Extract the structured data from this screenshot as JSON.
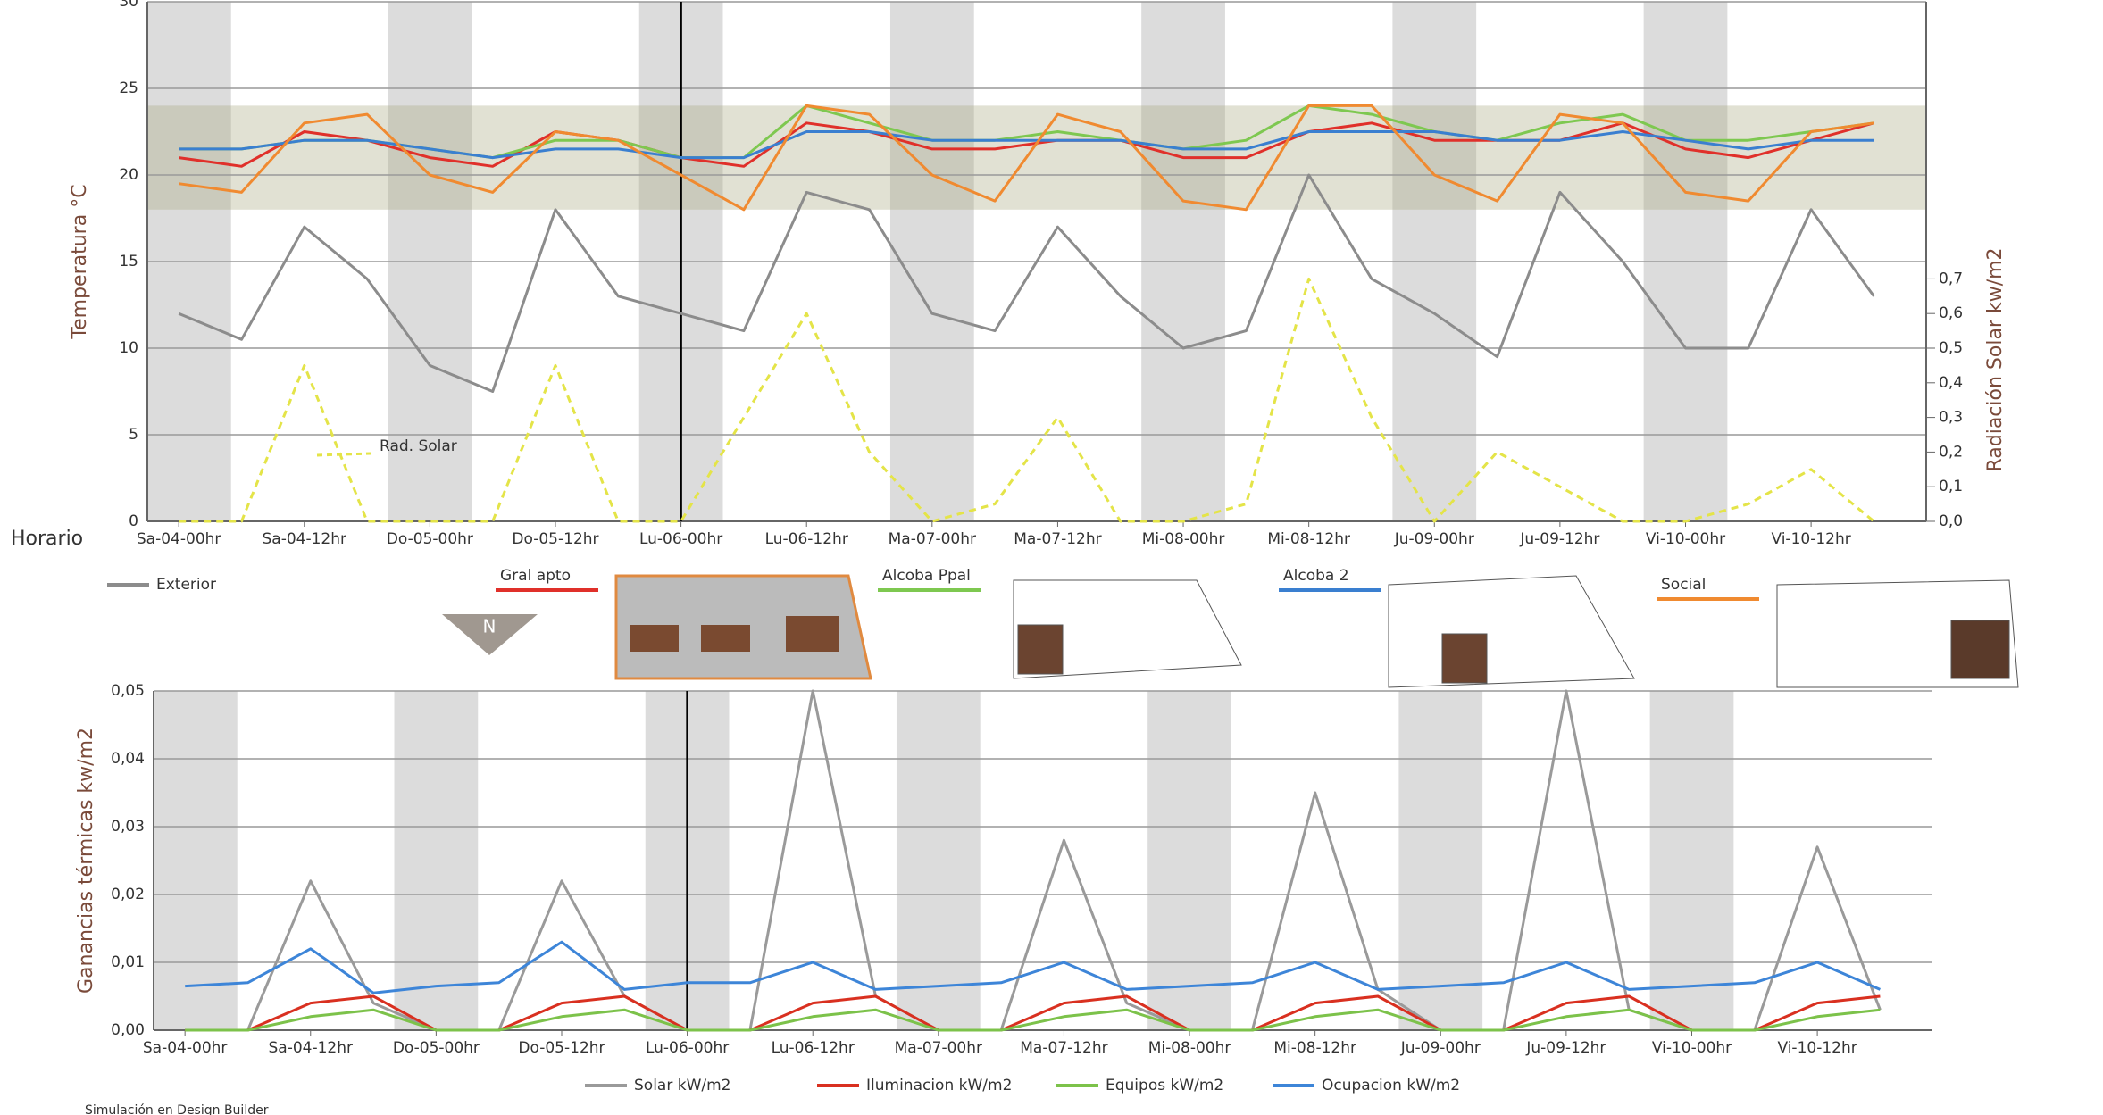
{
  "chart_data": [
    {
      "type": "line",
      "y_label": "Temperatura °C",
      "y2_label": "Radiación Solar kw/m2",
      "x_label": "Horario",
      "annotations": [
        {
          "text": "Rad. Solar"
        }
      ],
      "x": [
        0,
        6,
        12,
        18,
        24,
        30,
        36,
        42,
        48,
        54,
        60,
        66,
        72,
        78,
        84,
        90,
        96,
        102,
        108,
        114,
        120,
        126,
        132,
        138,
        144,
        150,
        156,
        162
      ],
      "xlim": [
        -3,
        167
      ],
      "xticks": [
        {
          "value": 0,
          "label": "Sa-04-00hr"
        },
        {
          "value": 12,
          "label": "Sa-04-12hr"
        },
        {
          "value": 24,
          "label": "Do-05-00hr"
        },
        {
          "value": 36,
          "label": "Do-05-12hr"
        },
        {
          "value": 48,
          "label": "Lu-06-00hr"
        },
        {
          "value": 60,
          "label": "Lu-06-12hr"
        },
        {
          "value": 72,
          "label": "Ma-07-00hr"
        },
        {
          "value": 84,
          "label": "Ma-07-12hr"
        },
        {
          "value": 96,
          "label": "Mi-08-00hr"
        },
        {
          "value": 108,
          "label": "Mi-08-12hr"
        },
        {
          "value": 120,
          "label": "Ju-09-00hr"
        },
        {
          "value": 132,
          "label": "Ju-09-12hr"
        },
        {
          "value": 144,
          "label": "Vi-10-00hr"
        },
        {
          "value": 156,
          "label": "Vi-10-12hr"
        }
      ],
      "ylim": [
        0,
        30
      ],
      "yticks": [
        0,
        5,
        10,
        15,
        20,
        25,
        30
      ],
      "y2lim": [
        0,
        1.5
      ],
      "y2ticks": [
        {
          "value": 0,
          "label": "0,0"
        },
        {
          "value": 0.1,
          "label": "0,1"
        },
        {
          "value": 0.2,
          "label": "0,2"
        },
        {
          "value": 0.3,
          "label": "0,3"
        },
        {
          "value": 0.4,
          "label": "0,4"
        },
        {
          "value": 0.5,
          "label": "0,5"
        },
        {
          "value": 0.6,
          "label": "0,6"
        },
        {
          "value": 0.7,
          "label": "0,7"
        }
      ],
      "grid": true,
      "shaded_ranges": [
        [
          -3,
          5
        ],
        [
          20,
          28
        ],
        [
          44,
          52
        ],
        [
          68,
          76
        ],
        [
          92,
          100
        ],
        [
          116,
          124
        ],
        [
          140,
          148
        ]
      ],
      "comfort_band": [
        18,
        24
      ],
      "marker_x": 48,
      "series": [
        {
          "name": "Exterior",
          "color": "#8c8c8c",
          "values": [
            12,
            10.5,
            17,
            14,
            9,
            7.5,
            18,
            13,
            12,
            11,
            19,
            18,
            12,
            11,
            17,
            13,
            10,
            11,
            20,
            14,
            12,
            9.5,
            19,
            15,
            10,
            10,
            18,
            13
          ]
        },
        {
          "name": "Gral apto",
          "color": "#e0302a",
          "values": [
            21,
            20.5,
            22.5,
            22,
            21,
            20.5,
            22.5,
            22,
            21,
            20.5,
            23,
            22.5,
            21.5,
            21.5,
            22,
            22,
            21,
            21,
            22.5,
            23,
            22,
            22,
            22,
            23,
            21.5,
            21,
            22,
            23
          ]
        },
        {
          "name": "Alcoba Ppal",
          "color": "#7ec850",
          "values": [
            21.5,
            21.5,
            22,
            22,
            21.5,
            21,
            22,
            22,
            21,
            21,
            24,
            23,
            22,
            22,
            22.5,
            22,
            21.5,
            22,
            24,
            23.5,
            22.5,
            22,
            23,
            23.5,
            22,
            22,
            22.5,
            23
          ]
        },
        {
          "name": "Alcoba 2",
          "color": "#3a7fd0",
          "values": [
            21.5,
            21.5,
            22,
            22,
            21.5,
            21,
            21.5,
            21.5,
            21,
            21,
            22.5,
            22.5,
            22,
            22,
            22,
            22,
            21.5,
            21.5,
            22.5,
            22.5,
            22.5,
            22,
            22,
            22.5,
            22,
            21.5,
            22,
            22
          ]
        },
        {
          "name": "Social",
          "color": "#f08a30",
          "values": [
            19.5,
            19,
            23,
            23.5,
            20,
            19,
            22.5,
            22,
            20,
            18,
            24,
            23.5,
            20,
            18.5,
            23.5,
            22.5,
            18.5,
            18,
            24,
            24,
            20,
            18.5,
            23.5,
            23,
            19,
            18.5,
            22.5,
            23
          ]
        },
        {
          "name": "Rad. Solar",
          "color": "#e4e448",
          "axis": "y2",
          "line_style": "dashed",
          "values": [
            0,
            0,
            0.45,
            0,
            0,
            0,
            0.45,
            0,
            0,
            0.3,
            0.6,
            0.2,
            0,
            0.05,
            0.3,
            0,
            0,
            0.05,
            0.7,
            0.3,
            0,
            0.2,
            0.1,
            0,
            0,
            0.05,
            0.15,
            0
          ]
        }
      ]
    },
    {
      "type": "line",
      "y_label": "Ganancias térmicas kw/m2",
      "x": [
        0,
        6,
        12,
        18,
        24,
        30,
        36,
        42,
        48,
        54,
        60,
        66,
        72,
        78,
        84,
        90,
        96,
        102,
        108,
        114,
        120,
        126,
        132,
        138,
        144,
        150,
        156,
        162
      ],
      "xlim": [
        -3,
        167
      ],
      "xticks": [
        {
          "value": 0,
          "label": "Sa-04-00hr"
        },
        {
          "value": 12,
          "label": "Sa-04-12hr"
        },
        {
          "value": 24,
          "label": "Do-05-00hr"
        },
        {
          "value": 36,
          "label": "Do-05-12hr"
        },
        {
          "value": 48,
          "label": "Lu-06-00hr"
        },
        {
          "value": 60,
          "label": "Lu-06-12hr"
        },
        {
          "value": 72,
          "label": "Ma-07-00hr"
        },
        {
          "value": 84,
          "label": "Ma-07-12hr"
        },
        {
          "value": 96,
          "label": "Mi-08-00hr"
        },
        {
          "value": 108,
          "label": "Mi-08-12hr"
        },
        {
          "value": 120,
          "label": "Ju-09-00hr"
        },
        {
          "value": 132,
          "label": "Ju-09-12hr"
        },
        {
          "value": 144,
          "label": "Vi-10-00hr"
        },
        {
          "value": 156,
          "label": "Vi-10-12hr"
        }
      ],
      "ylim": [
        0,
        0.05
      ],
      "yticks": [
        {
          "value": 0,
          "label": "0,00"
        },
        {
          "value": 0.01,
          "label": "0,01"
        },
        {
          "value": 0.02,
          "label": "0,02"
        },
        {
          "value": 0.03,
          "label": "0,03"
        },
        {
          "value": 0.04,
          "label": "0,04"
        },
        {
          "value": 0.05,
          "label": "0,05"
        }
      ],
      "grid": true,
      "shaded_ranges": [
        [
          -3,
          5
        ],
        [
          20,
          28
        ],
        [
          44,
          52
        ],
        [
          68,
          76
        ],
        [
          92,
          100
        ],
        [
          116,
          124
        ],
        [
          140,
          148
        ]
      ],
      "marker_x": 48,
      "series": [
        {
          "name": "Solar kW/m2",
          "color": "#9a9a9a",
          "values": [
            0,
            0,
            0.022,
            0.004,
            0,
            0,
            0.022,
            0.005,
            0,
            0,
            0.05,
            0.005,
            0,
            0,
            0.028,
            0.004,
            0,
            0,
            0.035,
            0.006,
            0,
            0,
            0.05,
            0.003,
            0,
            0,
            0.027,
            0.003
          ]
        },
        {
          "name": "Iluminacion kW/m2",
          "color": "#d93020",
          "values": [
            0,
            0,
            0.004,
            0.005,
            0,
            0,
            0.004,
            0.005,
            0,
            0,
            0.004,
            0.005,
            0,
            0,
            0.004,
            0.005,
            0,
            0,
            0.004,
            0.005,
            0,
            0,
            0.004,
            0.005,
            0,
            0,
            0.004,
            0.005
          ]
        },
        {
          "name": "Equipos kW/m2",
          "color": "#7cc24a",
          "values": [
            0,
            0,
            0.002,
            0.003,
            0,
            0,
            0.002,
            0.003,
            0,
            0,
            0.002,
            0.003,
            0,
            0,
            0.002,
            0.003,
            0,
            0,
            0.002,
            0.003,
            0,
            0,
            0.002,
            0.003,
            0,
            0,
            0.002,
            0.003
          ]
        },
        {
          "name": "Ocupacion kW/m2",
          "color": "#3d85d8",
          "values": [
            0.0065,
            0.007,
            0.012,
            0.0055,
            0.0065,
            0.007,
            0.013,
            0.006,
            0.007,
            0.007,
            0.01,
            0.006,
            0.0065,
            0.007,
            0.01,
            0.006,
            0.0065,
            0.007,
            0.01,
            0.006,
            0.0065,
            0.007,
            0.01,
            0.006,
            0.0065,
            0.007,
            0.01,
            0.006
          ]
        }
      ]
    }
  ],
  "orientation_label": "N",
  "footer": "Simulación en Design Builder"
}
